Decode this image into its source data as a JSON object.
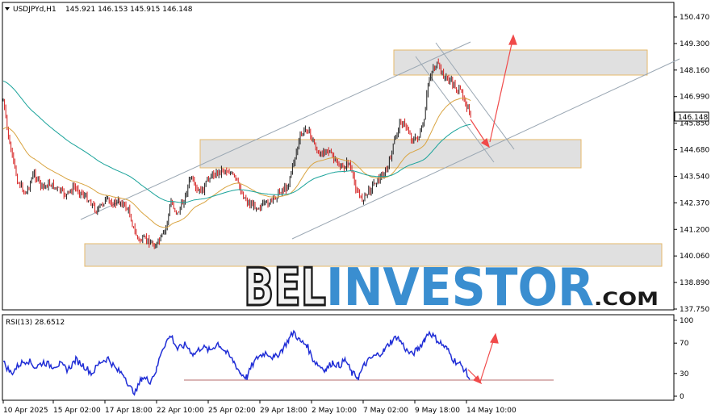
{
  "header": {
    "symbol_timeframe": "USDJPYd,H1",
    "ohlc": "145.921 146.153 145.915 146.148"
  },
  "watermark": {
    "part1": "BEL",
    "part2": "INVESTOR",
    "part3": ".COM",
    "color_dark": "#1a1a1a",
    "color_blue": "#3a8ed0"
  },
  "colors": {
    "candle_up": "#1a1a1a",
    "candle_down": "#d41a1a",
    "ma_fast": "#d9a441",
    "ma_slow": "#1aa39a",
    "channel": "#9aa7b3",
    "zone_fill": "#e0e0e0",
    "zone_border": "#e6b86a",
    "arrow": "#f04a4a",
    "rsi_line": "#1f2dd6",
    "rsi_ref_line": "#b56b6b"
  },
  "chart_data": [
    {
      "type": "candlestick",
      "title": "USDJPYd,H1",
      "price_scale": {
        "min": 137.75,
        "max": 150.8,
        "ticks": [
          "150.470",
          "149.300",
          "148.160",
          "146.990",
          "145.850",
          "144.680",
          "143.540",
          "142.370",
          "141.200",
          "140.060",
          "138.890",
          "137.750"
        ]
      },
      "current_price": "146.148",
      "x_labels": [
        "10 Apr 2025",
        "15 Apr 02:00",
        "17 Apr 18:00",
        "22 Apr 10:00",
        "25 Apr 02:00",
        "29 Apr 18:00",
        "2 May 10:00",
        "7 May 02:00",
        "9 May 18:00",
        "14 May 10:00"
      ],
      "zones": [
        {
          "low": 147.9,
          "high": 149.0
        },
        {
          "low": 143.9,
          "high": 145.2
        },
        {
          "low": 139.9,
          "high": 140.95
        }
      ]
    },
    {
      "type": "line",
      "title": "RSI(13) 28.6512",
      "ylim": [
        0,
        100
      ],
      "ticks": [
        "100",
        "70",
        "30",
        "0"
      ],
      "reference_level": 22
    }
  ]
}
